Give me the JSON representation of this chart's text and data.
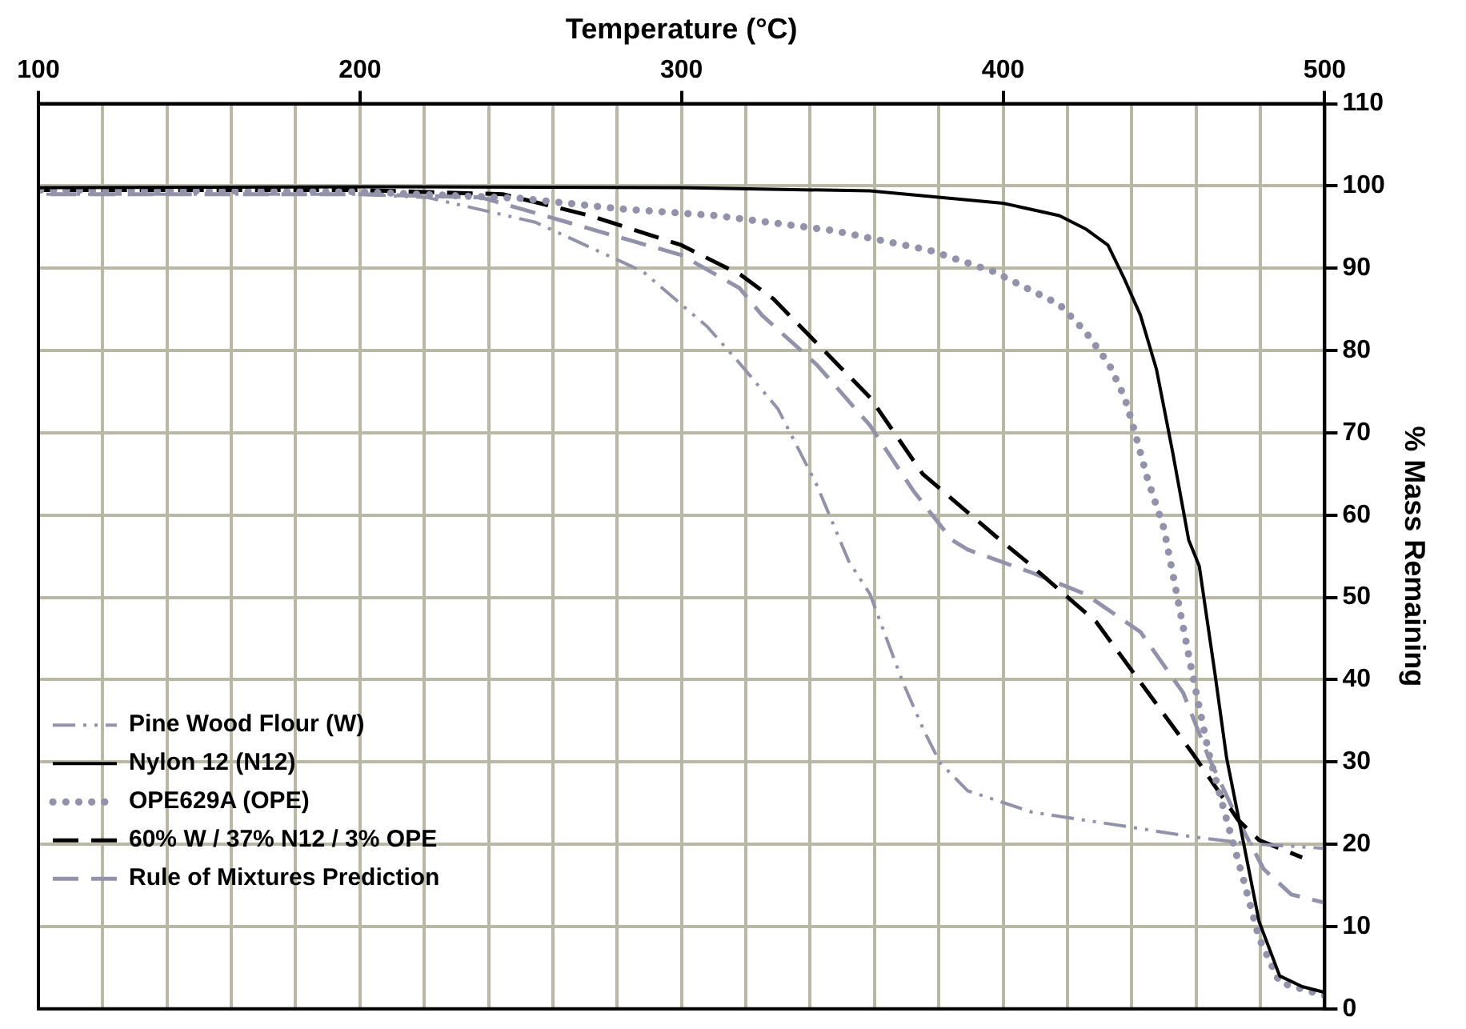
{
  "chart_data": {
    "type": "line",
    "xlabel": "Temperature (°C)",
    "ylabel": "% Mass Remaining",
    "xlim": [
      100,
      500
    ],
    "xticks": [
      100,
      {
        "value": 120,
        "label": null
      },
      {
        "value": 140,
        "label": null
      },
      {
        "value": 160,
        "label": null
      },
      {
        "value": 180,
        "label": null
      },
      200,
      {
        "value": 220,
        "label": null
      },
      {
        "value": 240,
        "label": null
      },
      {
        "value": 260,
        "label": null
      },
      {
        "value": 280,
        "label": null
      },
      300,
      {
        "value": 320,
        "label": null
      },
      {
        "value": 340,
        "label": null
      },
      {
        "value": 360,
        "label": null
      },
      {
        "value": 380,
        "label": null
      },
      400,
      {
        "value": 420,
        "label": null
      },
      {
        "value": 440,
        "label": null
      },
      {
        "value": 460,
        "label": null
      },
      {
        "value": 480,
        "label": null
      },
      500
    ],
    "ylim": [
      0,
      110
    ],
    "yticks": [
      0,
      10,
      20,
      30,
      40,
      50,
      60,
      70,
      80,
      90,
      100,
      110
    ],
    "grid": true,
    "legend": "bottom left",
    "marker": "none",
    "series": [
      {
        "name": "Pine Wood Flour (W)",
        "color": "#9292aa",
        "line_style": "dashdot",
        "x": [
          100,
          150,
          200,
          221,
          254.5,
          288,
          308,
          318.4,
          330,
          342,
          352,
          358.6,
          368.7,
          375.4,
          380.4,
          389,
          409,
          442.7,
          459,
          476,
          500
        ],
        "values": [
          99,
          99,
          99,
          98.6,
          95.6,
          89.6,
          82.9,
          78.3,
          72.9,
          63.7,
          54.4,
          50.4,
          39.8,
          33.8,
          29.9,
          26.5,
          23.9,
          21.9,
          20.9,
          20.1,
          19.5
        ]
      },
      {
        "name": "Nylon 12 (N12)",
        "color": "#000000",
        "line_style": "solid",
        "x": [
          100,
          200,
          300,
          358.6,
          400,
          417.5,
          425.6,
          432.6,
          437.6,
          442.7,
          447.7,
          452.7,
          457.7,
          461,
          466,
          469.5,
          474.6,
          479.6,
          486,
          493,
          500
        ],
        "values": [
          99.8,
          99.9,
          99.8,
          99.4,
          97.9,
          96.4,
          94.8,
          92.8,
          88.8,
          84.3,
          77.7,
          67.7,
          57,
          53.8,
          40.4,
          30.5,
          20.5,
          10.6,
          4,
          2.7,
          2
        ]
      },
      {
        "name": "OPE629A (OPE)",
        "color": "#9292aa",
        "line_style": "dotted",
        "x": [
          100,
          200,
          250,
          281.6,
          310.8,
          347,
          377,
          397,
          417.5,
          425.6,
          433,
          437.8,
          440.8,
          445,
          450,
          454,
          459,
          464,
          469.5,
          474.6,
          479.6,
          486,
          500
        ],
        "values": [
          99.5,
          99.3,
          98.5,
          97.2,
          96.4,
          94.6,
          92.2,
          89.6,
          85.6,
          82.3,
          78.3,
          74.3,
          70.3,
          64.3,
          58.4,
          50.4,
          40.4,
          31,
          23,
          15.9,
          8.6,
          3.2,
          1.6
        ]
      },
      {
        "name": "60% W / 37% N12 / 3% OPE",
        "color": "#000000",
        "line_style": "dashed",
        "x": [
          100,
          200,
          244.4,
          271.5,
          300,
          318.4,
          328.5,
          358.6,
          375,
          399,
          409,
          429,
          444,
          459,
          473,
          479.6,
          493
        ],
        "values": [
          99.5,
          99.5,
          99,
          96.4,
          92.8,
          89.2,
          86.3,
          74.3,
          65,
          57,
          53.8,
          47,
          39,
          31,
          23,
          20.5,
          18.4
        ]
      },
      {
        "name": "Rule of Mixtures Prediction",
        "color": "#9292aa",
        "line_style": "dashed",
        "x": [
          100,
          200,
          237.8,
          271.5,
          300,
          318,
          325,
          342,
          358.6,
          372,
          384,
          389,
          409,
          425.6,
          442.7,
          456,
          464,
          473,
          481,
          489.6,
          500
        ],
        "values": [
          99,
          99,
          98.6,
          94.8,
          91.6,
          87.6,
          84.3,
          78.3,
          70.9,
          63,
          57,
          55.8,
          53,
          50.4,
          45.8,
          38.4,
          30.5,
          23,
          17,
          13.9,
          12.9
        ]
      }
    ]
  }
}
